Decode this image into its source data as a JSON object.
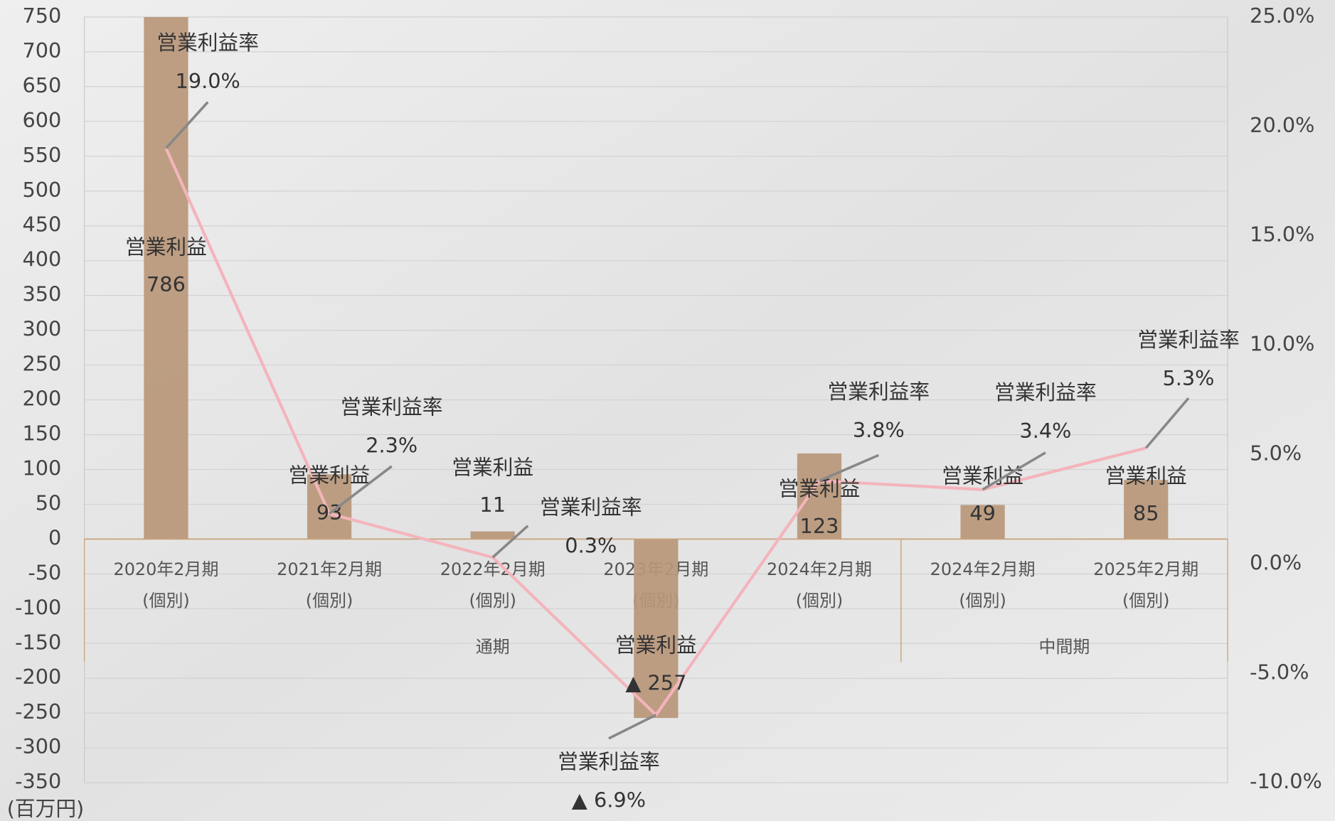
{
  "chart_data": {
    "type": "bar-line",
    "y_unit": "(百万円)",
    "category_groups": [
      {
        "name": "通期",
        "categories": [
          {
            "label": "2020年2月期",
            "sub": "(個別)"
          },
          {
            "label": "2021年2月期",
            "sub": "(個別)"
          },
          {
            "label": "2022年2月期",
            "sub": "(個別)"
          },
          {
            "label": "2023年2月期",
            "sub": "(個別)"
          },
          {
            "label": "2024年2月期",
            "sub": "(個別)"
          }
        ]
      },
      {
        "name": "中間期",
        "categories": [
          {
            "label": "2024年2月期",
            "sub": "(個別)"
          },
          {
            "label": "2025年2月期",
            "sub": "(個別)"
          }
        ]
      }
    ],
    "series": [
      {
        "name": "営業利益",
        "type": "bar",
        "color": "#b8977a",
        "values": [
          786,
          93,
          11,
          -257,
          123,
          49,
          85
        ],
        "value_labels": [
          "786",
          "93",
          "11",
          "▲ 257",
          "123",
          "49",
          "85"
        ]
      },
      {
        "name": "営業利益率",
        "type": "line",
        "axis": "y2",
        "color": "#f4b4bb",
        "values": [
          19.0,
          2.3,
          0.3,
          -6.9,
          3.8,
          3.4,
          5.3
        ],
        "value_labels": [
          "19.0%",
          "2.3%",
          "0.3%",
          "▲ 6.9%",
          "3.8%",
          "3.4%",
          "5.3%"
        ]
      }
    ],
    "ylim": [
      -350,
      750
    ],
    "yticks": [
      -350,
      -300,
      -250,
      -200,
      -150,
      -100,
      -50,
      0,
      50,
      100,
      150,
      200,
      250,
      300,
      350,
      400,
      450,
      500,
      550,
      600,
      650,
      700,
      750
    ],
    "y2lim": [
      -10,
      25
    ],
    "y2ticks": [
      {
        "value": -10,
        "label": "-10.0%"
      },
      {
        "value": -5,
        "label": "-5.0%"
      },
      {
        "value": 0,
        "label": "0.0%"
      },
      {
        "value": 5,
        "label": "5.0%"
      },
      {
        "value": 10,
        "label": "10.0%"
      },
      {
        "value": 15,
        "label": "15.0%"
      },
      {
        "value": 20,
        "label": "20.0%"
      },
      {
        "value": 25,
        "label": "25.0%"
      }
    ],
    "grid": true
  }
}
